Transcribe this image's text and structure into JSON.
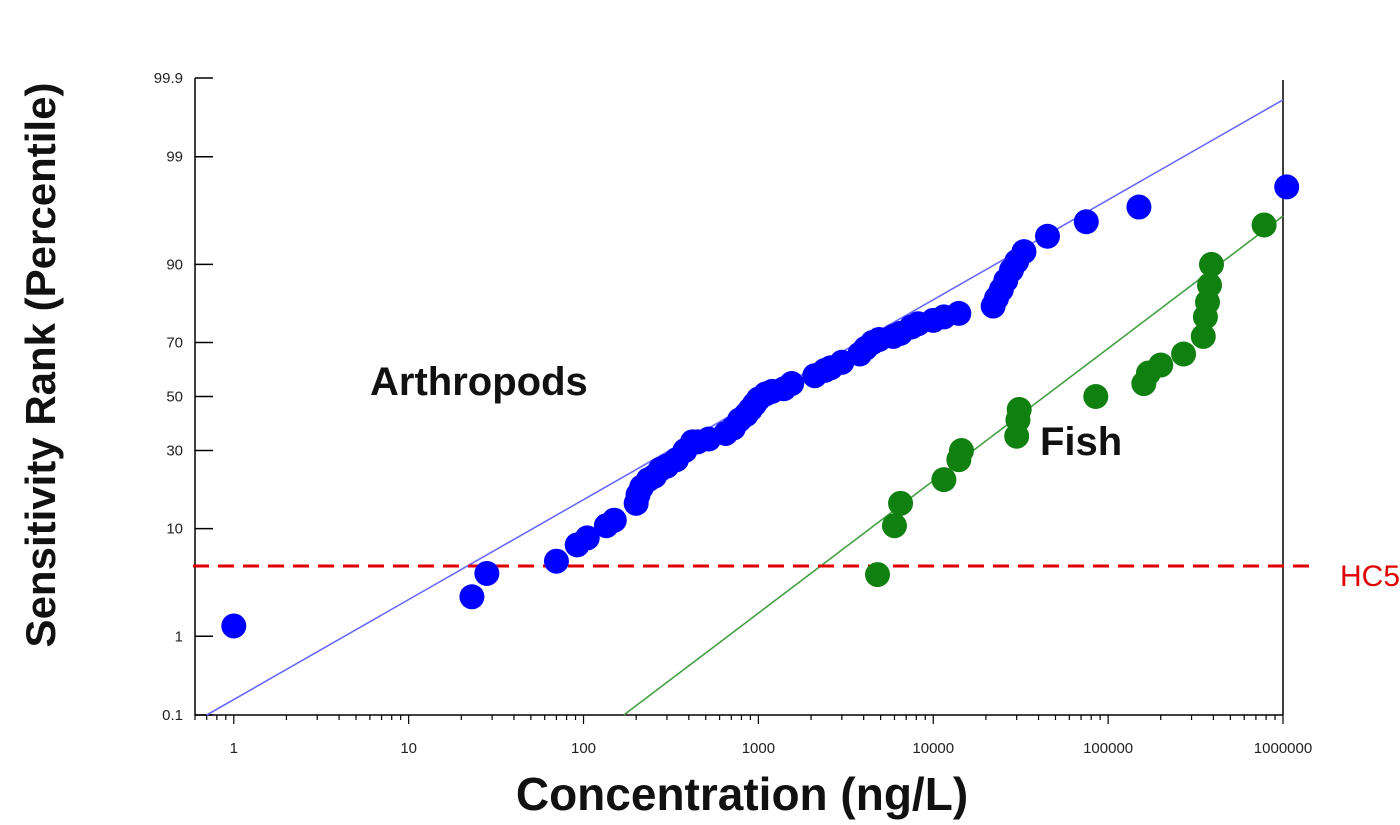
{
  "chart_data": {
    "type": "scatter",
    "title": "",
    "xlabel": "Concentration (ng/L)",
    "ylabel": "Sensitivity Rank (Percentile)",
    "x_scale": "log",
    "y_scale": "probability",
    "xlim": [
      0.6,
      1000000
    ],
    "ylim": [
      0.1,
      99.9
    ],
    "x_tick_labels": [
      "1",
      "10",
      "100",
      "1000",
      "10000",
      "100000",
      "1000000"
    ],
    "x_tick_values": [
      1,
      10,
      100,
      1000,
      10000,
      100000,
      1000000
    ],
    "y_tick_labels": [
      "0.1",
      "1",
      "10",
      "30",
      "50",
      "70",
      "90",
      "99",
      "99.9"
    ],
    "y_tick_values": [
      0.1,
      1,
      10,
      30,
      50,
      70,
      90,
      99,
      99.9
    ],
    "grid": false,
    "series": [
      {
        "name": "Arthropods",
        "color": "#0000ff",
        "points": [
          [
            1,
            1.3
          ],
          [
            23,
            2.6
          ],
          [
            28,
            4.3
          ],
          [
            70,
            5.5
          ],
          [
            92,
            7.5
          ],
          [
            105,
            8.5
          ],
          [
            135,
            10.5
          ],
          [
            150,
            11.5
          ],
          [
            200,
            15
          ],
          [
            205,
            17
          ],
          [
            215,
            19
          ],
          [
            235,
            21
          ],
          [
            255,
            22
          ],
          [
            275,
            24
          ],
          [
            300,
            25
          ],
          [
            340,
            27
          ],
          [
            380,
            30
          ],
          [
            420,
            33
          ],
          [
            450,
            33
          ],
          [
            520,
            34
          ],
          [
            650,
            36
          ],
          [
            720,
            38
          ],
          [
            780,
            41
          ],
          [
            850,
            43
          ],
          [
            900,
            45
          ],
          [
            950,
            47
          ],
          [
            1000,
            49
          ],
          [
            1100,
            51
          ],
          [
            1200,
            52
          ],
          [
            1400,
            53
          ],
          [
            1550,
            55
          ],
          [
            2100,
            58
          ],
          [
            2400,
            60
          ],
          [
            2600,
            61
          ],
          [
            3000,
            63
          ],
          [
            3800,
            66
          ],
          [
            4100,
            68
          ],
          [
            4500,
            70
          ],
          [
            4900,
            71
          ],
          [
            5900,
            72
          ],
          [
            6500,
            73
          ],
          [
            7500,
            75
          ],
          [
            8200,
            76
          ],
          [
            10000,
            77
          ],
          [
            11500,
            78
          ],
          [
            14000,
            79
          ],
          [
            22000,
            81
          ],
          [
            23000,
            83
          ],
          [
            24500,
            85
          ],
          [
            26000,
            87
          ],
          [
            28000,
            89
          ],
          [
            30000,
            90.5
          ],
          [
            33000,
            92
          ],
          [
            45000,
            94
          ],
          [
            75000,
            95.5
          ],
          [
            150000,
            96.7
          ],
          [
            1050000,
            97.9
          ]
        ]
      },
      {
        "name": "Fish",
        "color": "#108010",
        "points": [
          [
            4800,
            4.2
          ],
          [
            6000,
            10.5
          ],
          [
            6500,
            15
          ],
          [
            11500,
            21
          ],
          [
            14000,
            27
          ],
          [
            14500,
            30
          ],
          [
            30000,
            35
          ],
          [
            30500,
            41
          ],
          [
            31000,
            45
          ],
          [
            85000,
            50
          ],
          [
            160000,
            55
          ],
          [
            170000,
            59
          ],
          [
            200000,
            62
          ],
          [
            270000,
            66
          ],
          [
            350000,
            72
          ],
          [
            360000,
            78
          ],
          [
            370000,
            82
          ],
          [
            380000,
            86
          ],
          [
            390000,
            90
          ],
          [
            780000,
            95.2
          ]
        ]
      }
    ],
    "fit_lines": [
      {
        "series": "Arthropods",
        "color": "#6a6aff",
        "x": [
          0.7,
          1000000
        ],
        "y": [
          0.1,
          99.8
        ]
      },
      {
        "series": "Fish",
        "color": "#44a044",
        "x": [
          170,
          1000000
        ],
        "y": [
          0.1,
          96
        ]
      }
    ],
    "annotations": [
      {
        "type": "hline",
        "y": 5,
        "color": "#e00000",
        "style": "dashed",
        "label": "HC5"
      }
    ],
    "labels": {
      "arthropods": "Arthropods",
      "fish": "Fish",
      "hc5": "HC5"
    }
  }
}
